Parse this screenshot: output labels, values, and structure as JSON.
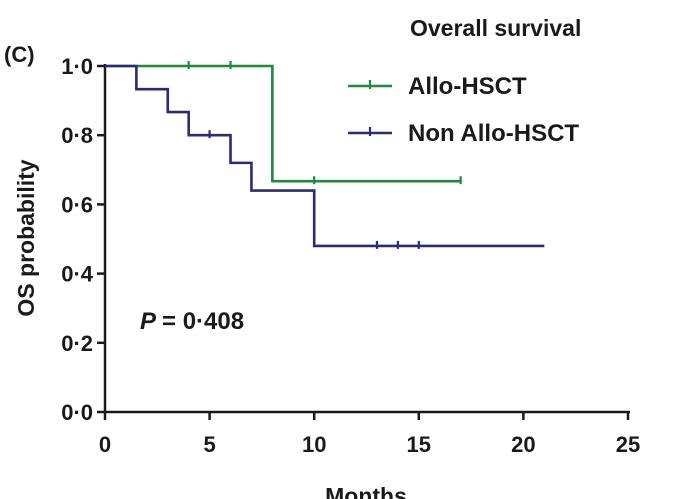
{
  "chart_data": {
    "type": "line",
    "subtype": "kaplan-meier",
    "panel_label": "(C)",
    "title": "Overall survival",
    "xlabel": "Months",
    "ylabel": "OS probability",
    "xlim": [
      0,
      25
    ],
    "ylim": [
      0,
      1
    ],
    "x_ticks": [
      "0",
      "5",
      "10",
      "15",
      "20",
      "25"
    ],
    "y_ticks": [
      "0·0",
      "0·2",
      "0·4",
      "0·6",
      "0·8",
      "1·0"
    ],
    "annotation": {
      "p_label": "P",
      "p_value": "= 0·408"
    },
    "grid": false,
    "legend_position": "top-right",
    "series": [
      {
        "name": "Allo-HSCT",
        "color": "#1e8a3e",
        "steps": [
          [
            0,
            1.0
          ],
          [
            8,
            0.667
          ],
          [
            17,
            0.667
          ]
        ],
        "censored": [
          [
            4,
            1.0
          ],
          [
            6,
            1.0
          ],
          [
            10,
            0.667
          ],
          [
            17,
            0.667
          ]
        ]
      },
      {
        "name": "Non Allo-HSCT",
        "color": "#2b2a78",
        "steps": [
          [
            0,
            1.0
          ],
          [
            1.5,
            0.933
          ],
          [
            3,
            0.867
          ],
          [
            4,
            0.8
          ],
          [
            6,
            0.72
          ],
          [
            7,
            0.64
          ],
          [
            10,
            0.48
          ],
          [
            21,
            0.48
          ]
        ],
        "censored": [
          [
            5,
            0.8
          ],
          [
            13,
            0.48
          ],
          [
            14,
            0.48
          ],
          [
            15,
            0.48
          ]
        ]
      }
    ]
  }
}
